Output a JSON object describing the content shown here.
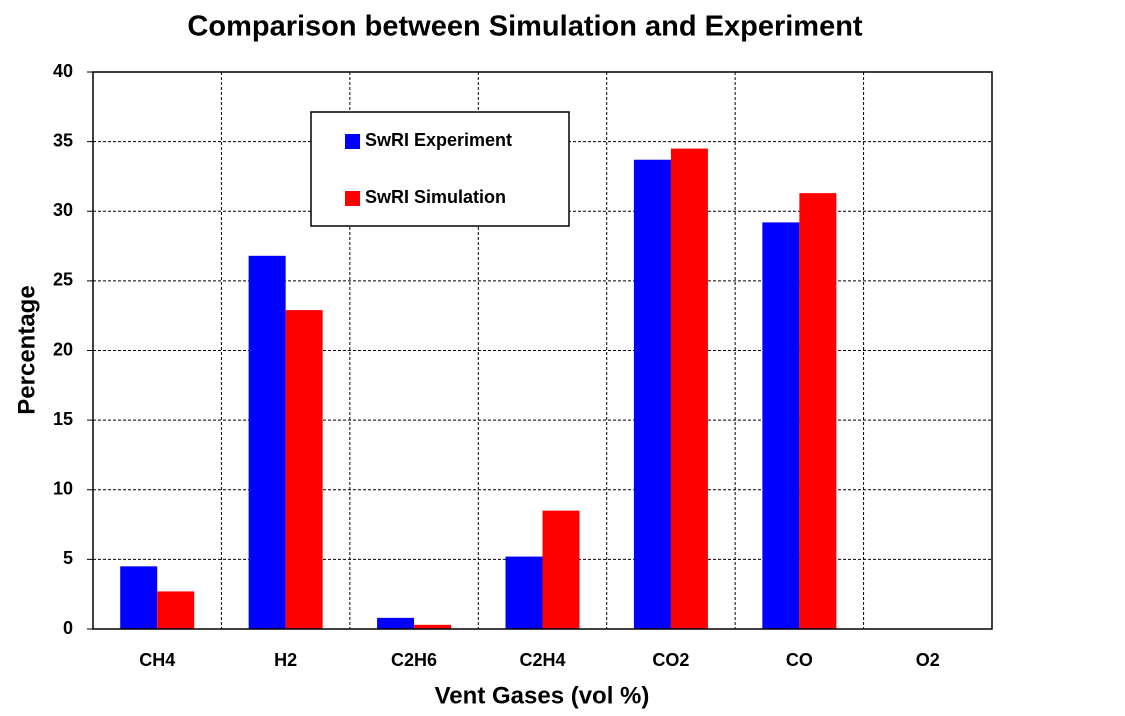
{
  "chart_data": {
    "type": "bar",
    "title": "Comparison between Simulation and Experiment",
    "x_label": "Vent Gases (vol %)",
    "y_label": "Percentage",
    "categories": [
      "CH4",
      "H2",
      "C2H6",
      "C2H4",
      "CO2",
      "CO",
      "O2"
    ],
    "series": [
      {
        "name": "SwRI Experiment",
        "color": "#0000ff",
        "values": [
          4.5,
          26.8,
          0.8,
          5.2,
          33.7,
          29.2,
          0
        ]
      },
      {
        "name": "SwRI Simulation",
        "color": "#ff0000",
        "values": [
          2.7,
          22.9,
          0.3,
          8.5,
          34.5,
          31.3,
          0
        ]
      }
    ],
    "ylim": [
      0,
      40
    ],
    "yticks": [
      0,
      5,
      10,
      15,
      20,
      25,
      30,
      35,
      40
    ],
    "grid": true,
    "legend": "upper left"
  }
}
